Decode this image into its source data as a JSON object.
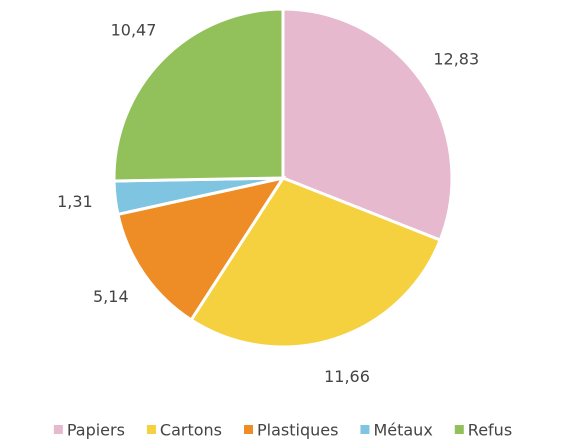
{
  "chart_data": {
    "type": "pie",
    "categories": [
      "Papiers",
      "Cartons",
      "Plastiques",
      "Métaux",
      "Refus"
    ],
    "values": [
      12.83,
      11.66,
      5.14,
      1.31,
      10.47
    ],
    "value_labels": [
      "12,83",
      "11,66",
      "5,14",
      "1,31",
      "10,47"
    ],
    "colors": [
      "#e6b9cf",
      "#f5d03f",
      "#ee8c25",
      "#7fc4e0",
      "#92c05a"
    ],
    "legend": "bottom"
  }
}
